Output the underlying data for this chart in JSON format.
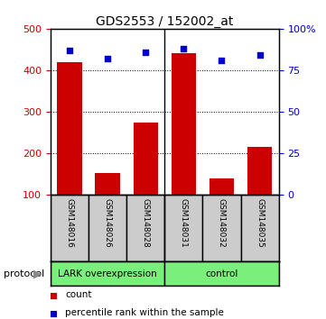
{
  "title": "GDS2553 / 152002_at",
  "samples": [
    "GSM148016",
    "GSM148026",
    "GSM148028",
    "GSM148031",
    "GSM148032",
    "GSM148035"
  ],
  "counts": [
    420,
    152,
    274,
    440,
    138,
    215
  ],
  "percentile_ranks": [
    87,
    82,
    86,
    88,
    81,
    84
  ],
  "ylim_left": [
    100,
    500
  ],
  "ylim_right": [
    0,
    100
  ],
  "yticks_left": [
    100,
    200,
    300,
    400,
    500
  ],
  "yticks_right": [
    0,
    25,
    50,
    75,
    100
  ],
  "yticklabels_right": [
    "0",
    "25",
    "50",
    "75",
    "100%"
  ],
  "bar_color": "#cc0000",
  "scatter_color": "#0000cc",
  "group1_label": "LARK overexpression",
  "group2_label": "control",
  "group1_indices": [
    0,
    1,
    2
  ],
  "group2_indices": [
    3,
    4,
    5
  ],
  "group1_color": "#7bef7b",
  "group2_color": "#7bef7b",
  "protocol_label": "protocol",
  "legend_count_label": "count",
  "legend_pct_label": "percentile rank within the sample",
  "bar_width": 0.65,
  "label_area_color": "#cccccc",
  "figsize": [
    3.61,
    3.54
  ],
  "dpi": 100
}
